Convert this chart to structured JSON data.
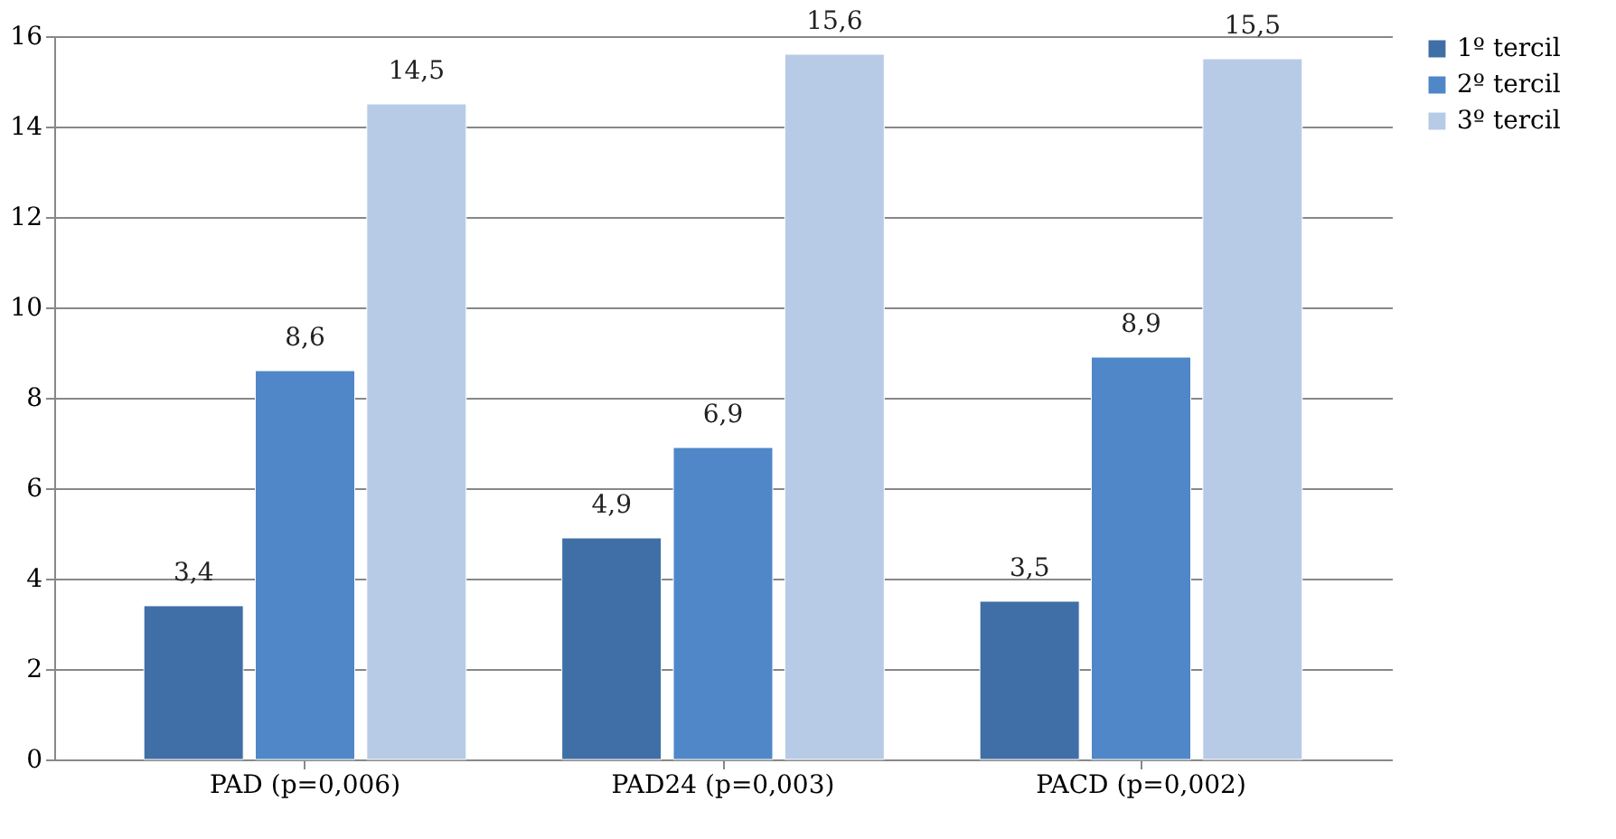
{
  "chart_data": {
    "type": "bar",
    "categories": [
      "PAD   (p=0,006)",
      "PAD24   (p=0,003)",
      "PACD   (p=0,002)"
    ],
    "series": [
      {
        "name": "1º   tercil",
        "color": "#3f6fa6",
        "values": [
          3.4,
          4.9,
          3.5
        ],
        "value_labels": [
          "3,4",
          "4,9",
          "3,5"
        ]
      },
      {
        "name": "2º   tercil",
        "color": "#4f87c8",
        "values": [
          8.6,
          6.9,
          8.9
        ],
        "value_labels": [
          "8,6",
          "6,9",
          "8,9"
        ]
      },
      {
        "name": "3º   tercil",
        "color": "#b7cbe6",
        "values": [
          14.5,
          15.6,
          15.5
        ],
        "value_labels": [
          "14,5",
          "15,6",
          "15,5"
        ]
      }
    ],
    "ylim": [
      0,
      16
    ],
    "yticks": [
      0,
      2,
      4,
      6,
      8,
      10,
      12,
      14,
      16
    ],
    "grid": "y",
    "legend": "right"
  }
}
